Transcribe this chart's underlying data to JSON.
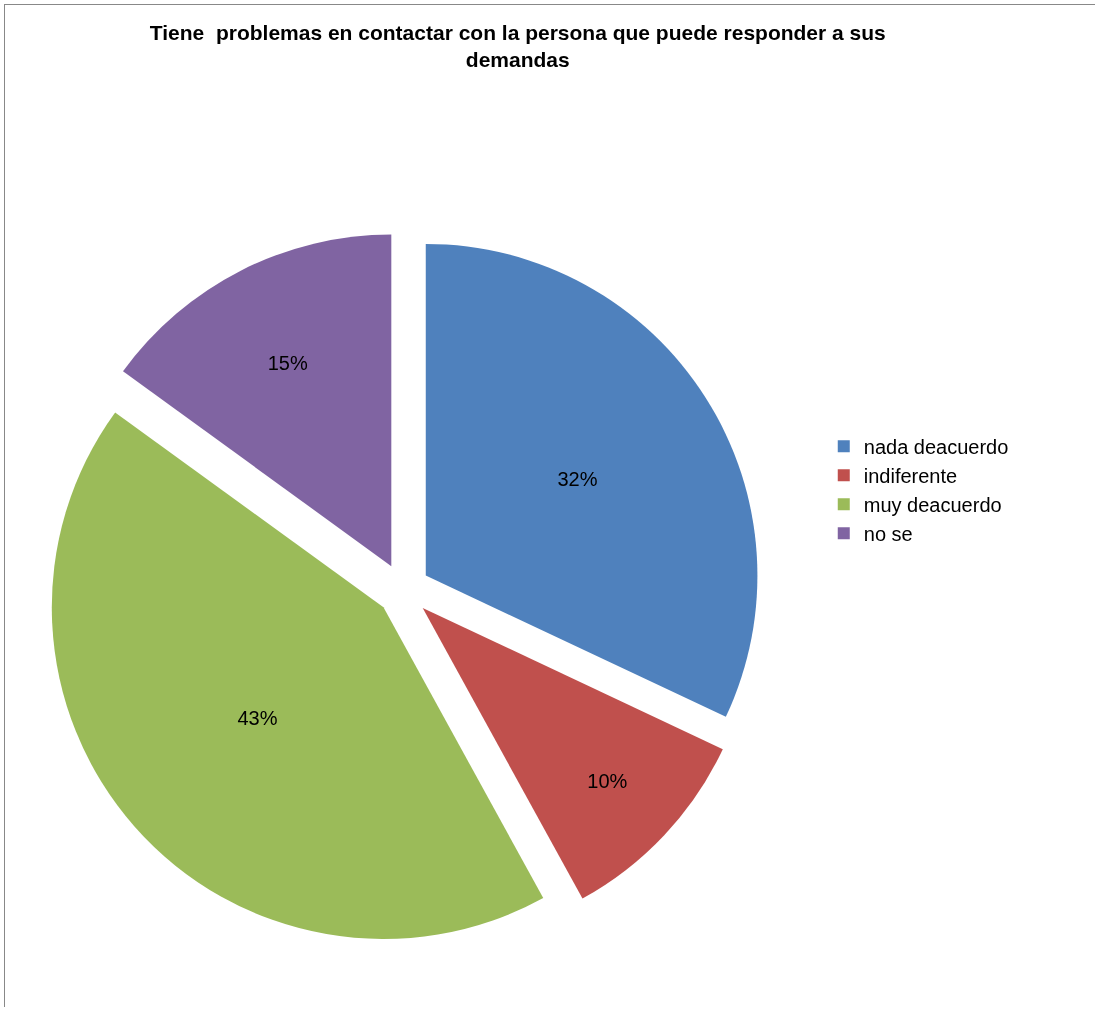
{
  "chart_data": {
    "type": "pie",
    "title": "Tiene  problemas en contactar con la persona que puede responder a sus demandas",
    "categories": [
      "nada deacuerdo",
      "indiferente",
      "muy deacuerdo",
      "no se"
    ],
    "values": [
      32,
      10,
      43,
      15
    ],
    "value_labels": [
      "32%",
      "10%",
      "43%",
      "15%"
    ],
    "colors": [
      "#4f81bd",
      "#c0504d",
      "#9bbb59",
      "#8064a2"
    ],
    "legend": "right"
  }
}
